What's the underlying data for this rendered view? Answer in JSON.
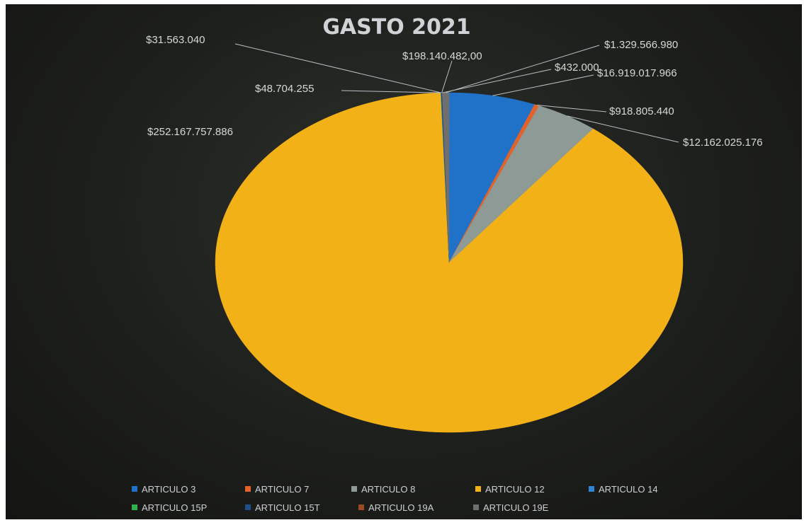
{
  "chart_data": {
    "type": "pie",
    "title": "GASTO 2021",
    "legend_position": "bottom",
    "slices": [
      {
        "name": "ARTICULO 3",
        "value": 16919017966,
        "label": "$16.919.017.966",
        "color": "#1f72c8"
      },
      {
        "name": "ARTICULO 7",
        "value": 918805440,
        "label": "$918.805.440",
        "color": "#e2622a"
      },
      {
        "name": "ARTICULO 8",
        "value": 12162025176,
        "label": "$12.162.025.176",
        "color": "#8e9a96"
      },
      {
        "name": "ARTICULO 12",
        "value": 252167757886,
        "label": "$252.167.757.886",
        "color": "#f2b116"
      },
      {
        "name": "ARTICULO 14",
        "value": 48704255,
        "label": "$48.704.255",
        "color": "#2f86d6"
      },
      {
        "name": "ARTICULO 15P",
        "value": 31563040,
        "label": "$31.563.040",
        "color": "#2fb04a"
      },
      {
        "name": "ARTICULO 15T",
        "value": 198140482,
        "label": "$198.140.482,00",
        "color": "#1e4f88"
      },
      {
        "name": "ARTICULO 19A",
        "value": 432000,
        "label": "$432.000",
        "color": "#9a4a1e"
      },
      {
        "name": "ARTICULO 19E",
        "value": 1329566980,
        "label": "$1.329.566.980",
        "color": "#6f6f6f"
      }
    ]
  }
}
